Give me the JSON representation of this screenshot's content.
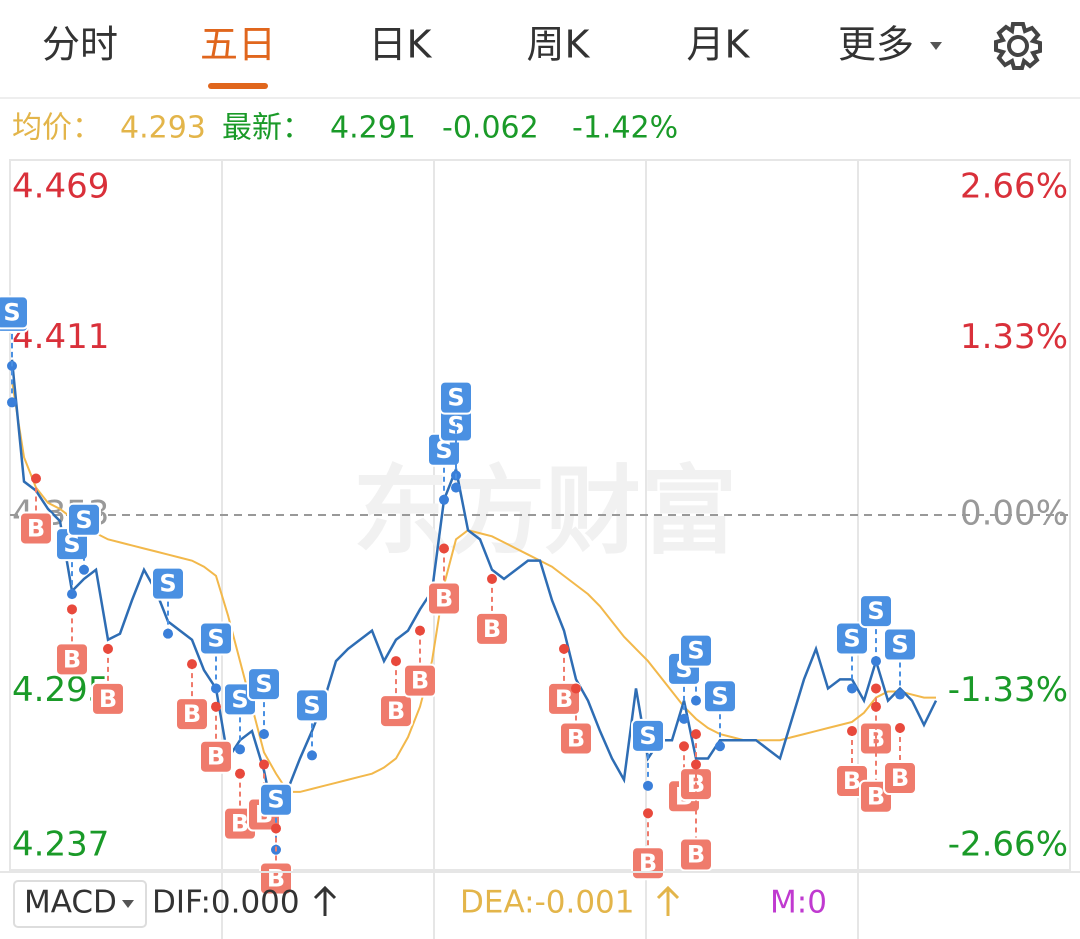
{
  "tabs": [
    "分时",
    "五日",
    "日K",
    "周K",
    "月K",
    "更多"
  ],
  "info": {
    "avg_label": "均价：",
    "avg": "4.293",
    "last_label": "最新：",
    "last": "4.291",
    "change": "-0.062",
    "change_pct": "-1.42%"
  },
  "watermark": "东方财富",
  "indicator": {
    "name": "MACD",
    "dif": "DIF:0.000",
    "dea": "DEA:-0.001",
    "m": "M:0"
  },
  "chart_data": {
    "type": "line",
    "ylim": [
      4.237,
      4.469
    ],
    "yticks": [
      4.469,
      4.411,
      4.353,
      4.295,
      4.237
    ],
    "y2lim": [
      -2.66,
      2.66
    ],
    "y2ticks": [
      {
        "value": 2.66,
        "label": "2.66%"
      },
      {
        "value": 1.33,
        "label": "1.33%"
      },
      {
        "value": 0,
        "label": "0.00%"
      },
      {
        "value": -1.33,
        "label": "-1.33%"
      },
      {
        "value": -2.66,
        "label": "-2.66%"
      }
    ],
    "series": [
      {
        "color": "#2e6db4",
        "values": [
          4.404,
          4.364,
          4.361,
          4.355,
          4.351,
          4.328,
          4.332,
          4.335,
          4.312,
          4.314,
          4.325,
          4.335,
          4.328,
          4.318,
          4.315,
          4.312,
          4.302,
          4.296,
          4.273,
          4.279,
          4.282,
          4.269,
          4.25,
          4.263,
          4.273,
          4.282,
          4.292,
          4.305,
          4.309,
          4.312,
          4.315,
          4.305,
          4.312,
          4.315,
          4.322,
          4.328,
          4.358,
          4.368,
          4.348,
          4.345,
          4.335,
          4.332,
          4.335,
          4.338,
          4.338,
          4.325,
          4.315,
          4.299,
          4.292,
          4.282,
          4.273,
          4.266,
          4.296,
          4.273,
          4.279,
          4.279,
          4.292,
          4.273,
          4.273,
          4.279,
          4.279,
          4.279,
          4.279,
          4.276,
          4.273,
          4.286,
          4.299,
          4.309,
          4.296,
          4.299,
          4.299,
          4.292,
          4.305,
          4.292,
          4.296,
          4.292,
          4.284,
          4.292
        ]
      },
      {
        "color": "#f2b84b",
        "values": [
          4.397,
          4.372,
          4.362,
          4.357,
          4.355,
          4.352,
          4.349,
          4.347,
          4.345,
          4.344,
          4.343,
          4.342,
          4.341,
          4.34,
          4.339,
          4.338,
          4.336,
          4.333,
          4.32,
          4.305,
          4.29,
          4.275,
          4.268,
          4.262,
          4.262,
          4.263,
          4.264,
          4.265,
          4.266,
          4.267,
          4.268,
          4.27,
          4.273,
          4.28,
          4.29,
          4.305,
          4.33,
          4.345,
          4.348,
          4.347,
          4.346,
          4.344,
          4.342,
          4.34,
          4.338,
          4.336,
          4.333,
          4.33,
          4.327,
          4.323,
          4.318,
          4.313,
          4.309,
          4.305,
          4.3,
          4.295,
          4.29,
          4.286,
          4.283,
          4.281,
          4.28,
          4.279,
          4.279,
          4.279,
          4.279,
          4.28,
          4.281,
          4.282,
          4.283,
          4.284,
          4.285,
          4.288,
          4.293,
          4.295,
          4.295,
          4.294,
          4.293,
          4.293
        ]
      }
    ],
    "signals": [
      {
        "index": 0,
        "label": "S",
        "value": 4.402
      },
      {
        "index": 0,
        "label": "S",
        "value": 4.39
      },
      {
        "index": 2,
        "label": "B",
        "value": 4.365
      },
      {
        "index": 5,
        "label": "S",
        "value": 4.327
      },
      {
        "index": 6,
        "label": "S",
        "value": 4.335
      },
      {
        "index": 5,
        "label": "B",
        "value": 4.322
      },
      {
        "index": 8,
        "label": "B",
        "value": 4.309
      },
      {
        "index": 13,
        "label": "S",
        "value": 4.314
      },
      {
        "index": 15,
        "label": "B",
        "value": 4.304
      },
      {
        "index": 17,
        "label": "S",
        "value": 4.296
      },
      {
        "index": 17,
        "label": "B",
        "value": 4.29
      },
      {
        "index": 19,
        "label": "S",
        "value": 4.276
      },
      {
        "index": 19,
        "label": "B",
        "value": 4.268
      },
      {
        "index": 21,
        "label": "S",
        "value": 4.281
      },
      {
        "index": 21,
        "label": "B",
        "value": 4.271
      },
      {
        "index": 22,
        "label": "S",
        "value": 4.243
      },
      {
        "index": 22,
        "label": "B",
        "value": 4.25
      },
      {
        "index": 25,
        "label": "S",
        "value": 4.274
      },
      {
        "index": 32,
        "label": "B",
        "value": 4.305
      },
      {
        "index": 34,
        "label": "B",
        "value": 4.315
      },
      {
        "index": 36,
        "label": "S",
        "value": 4.358
      },
      {
        "index": 37,
        "label": "S",
        "value": 4.366
      },
      {
        "index": 37,
        "label": "S",
        "value": 4.362
      },
      {
        "index": 36,
        "label": "B",
        "value": 4.342
      },
      {
        "index": 40,
        "label": "B",
        "value": 4.332
      },
      {
        "index": 46,
        "label": "B",
        "value": 4.309
      },
      {
        "index": 47,
        "label": "B",
        "value": 4.296
      },
      {
        "index": 53,
        "label": "S",
        "value": 4.264
      },
      {
        "index": 53,
        "label": "B",
        "value": 4.255
      },
      {
        "index": 56,
        "label": "S",
        "value": 4.286
      },
      {
        "index": 56,
        "label": "B",
        "value": 4.277
      },
      {
        "index": 57,
        "label": "S",
        "value": 4.292
      },
      {
        "index": 57,
        "label": "B",
        "value": 4.281
      },
      {
        "index": 57,
        "label": "B",
        "value": 4.271
      },
      {
        "index": 59,
        "label": "S",
        "value": 4.277
      },
      {
        "index": 70,
        "label": "S",
        "value": 4.296
      },
      {
        "index": 70,
        "label": "B",
        "value": 4.282
      },
      {
        "index": 72,
        "label": "S",
        "value": 4.305
      },
      {
        "index": 72,
        "label": "B",
        "value": 4.296
      },
      {
        "index": 72,
        "label": "B",
        "value": 4.29
      },
      {
        "index": 74,
        "label": "S",
        "value": 4.294
      },
      {
        "index": 74,
        "label": "B",
        "value": 4.283
      }
    ]
  }
}
